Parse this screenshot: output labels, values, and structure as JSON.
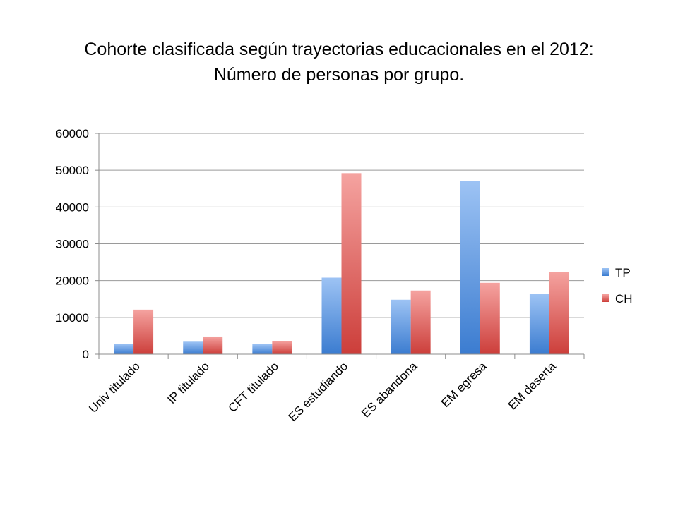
{
  "slide": {
    "title_line1": "Cohorte clasificada según trayectorias educacionales en el 2012:",
    "title_line2": "Número de personas por grupo."
  },
  "chart_data": {
    "type": "bar",
    "title": "Cohorte clasificada según trayectorias educacionales en el 2012: Número de personas por grupo.",
    "xlabel": "",
    "ylabel": "",
    "ylim": [
      0,
      60000
    ],
    "yticks": [
      "0",
      "10000",
      "20000",
      "30000",
      "40000",
      "50000",
      "60000"
    ],
    "grid": true,
    "legend_position": "right",
    "categories": [
      "Univ titulado",
      "IP titulado",
      "CFT titulado",
      "ES estudiando",
      "ES abandona",
      "EM egresa",
      "EM deserta"
    ],
    "series": [
      {
        "name": "TP",
        "color": "#4F81BD",
        "values": [
          2800,
          3400,
          2700,
          20800,
          14800,
          47100,
          16400
        ]
      },
      {
        "name": "CH",
        "color": "#C0504D",
        "values": [
          12100,
          4800,
          3600,
          49200,
          17300,
          19400,
          22400
        ]
      }
    ]
  }
}
